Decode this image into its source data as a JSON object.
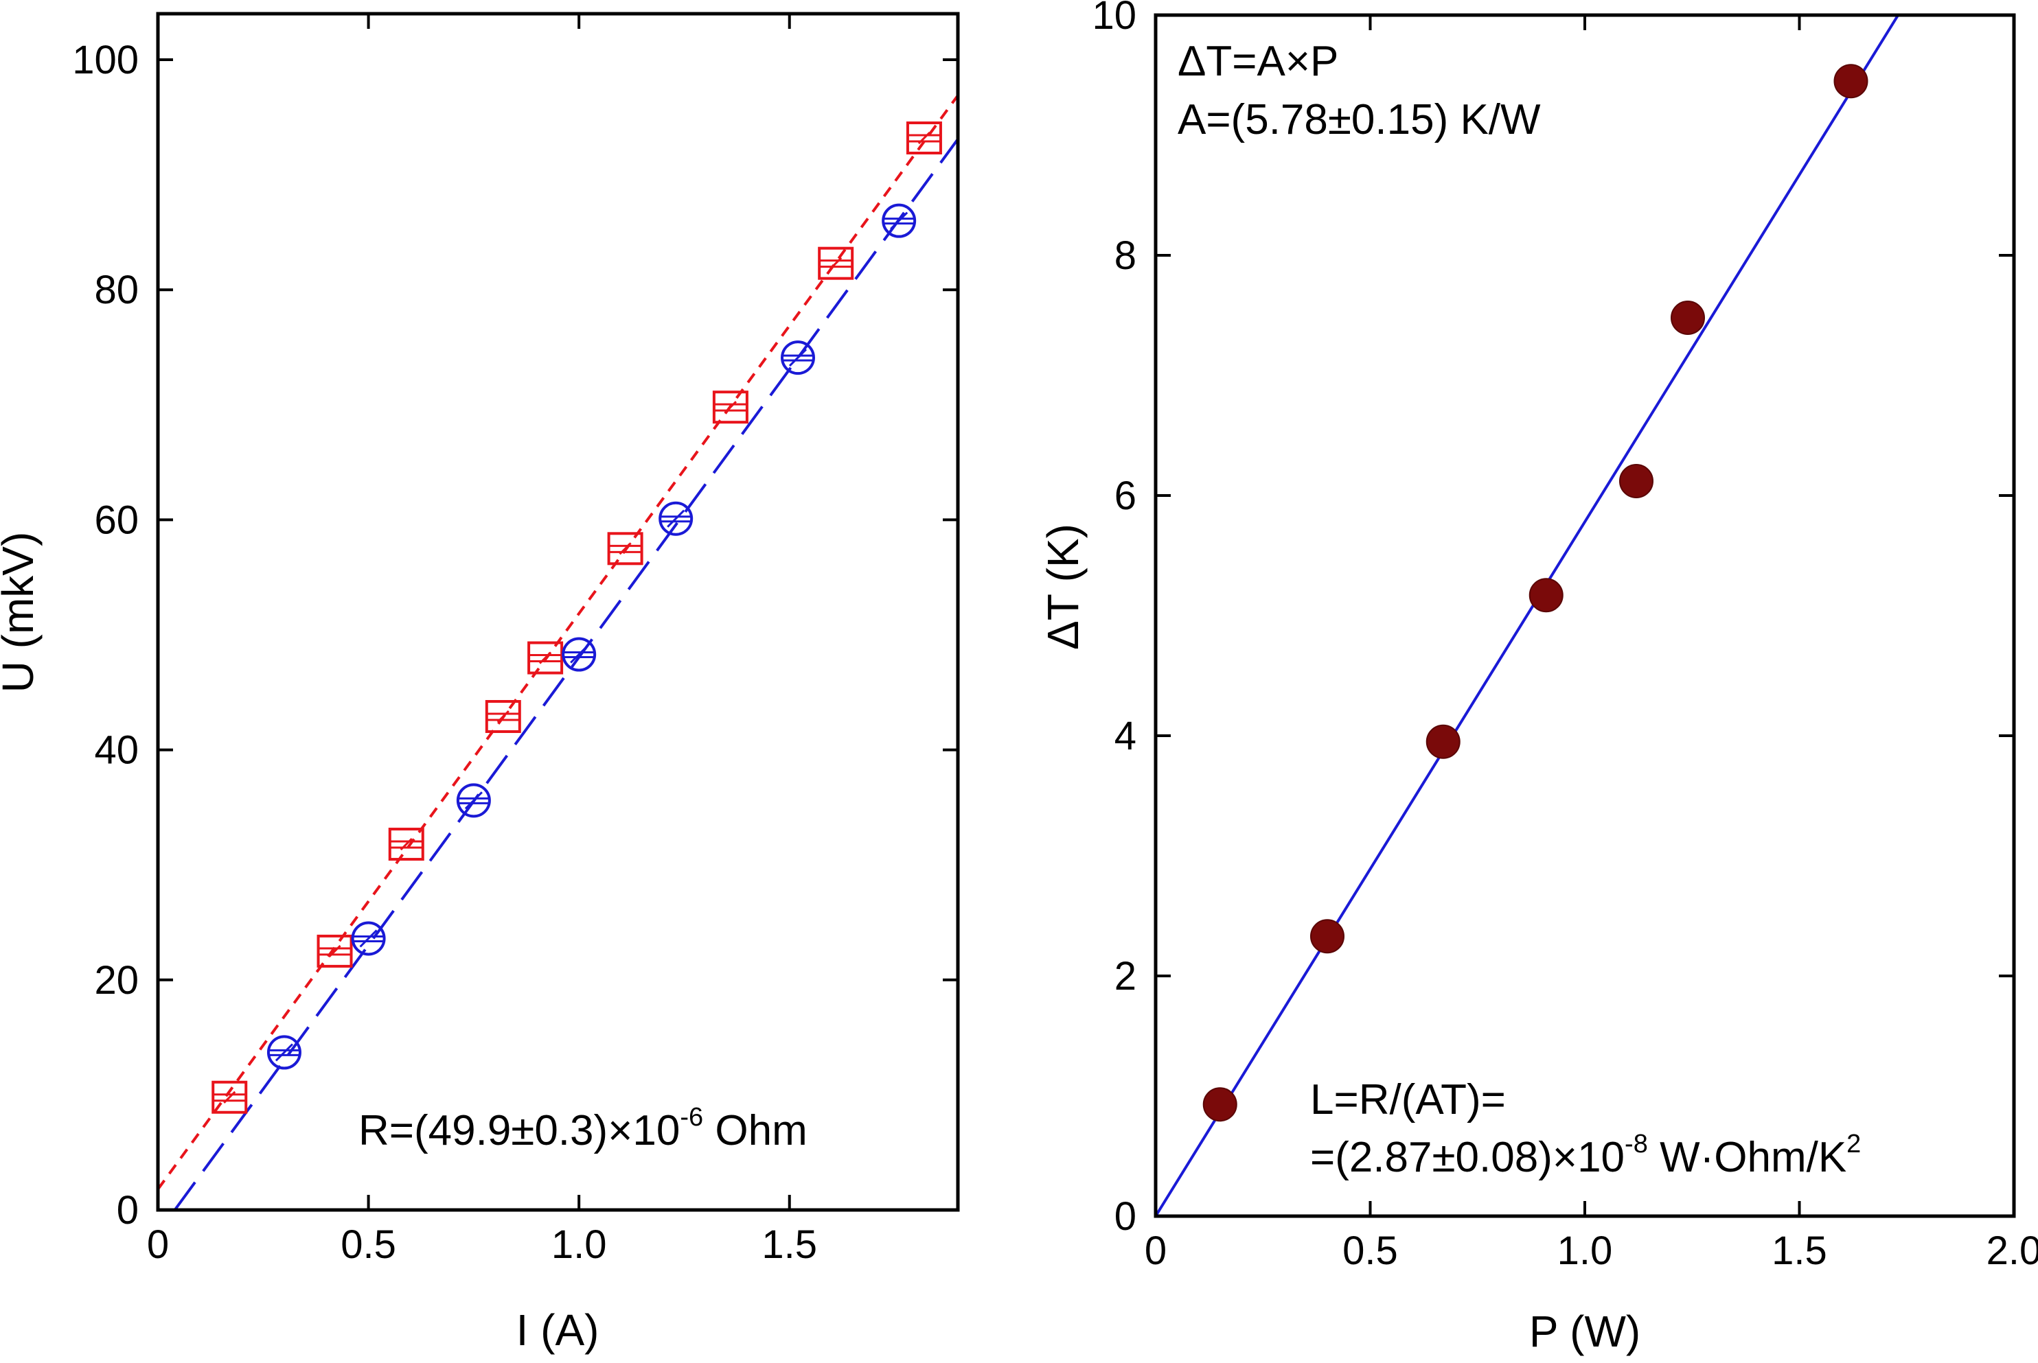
{
  "chart_data": [
    {
      "type": "scatter",
      "xlabel": "I (A)",
      "ylabel": "U (mkV)",
      "xlim": [
        0,
        1.9
      ],
      "ylim": [
        0,
        104
      ],
      "x_ticks": [
        "0",
        "0.5",
        "1.0",
        "1.5"
      ],
      "x_tick_values": [
        0,
        0.5,
        1.0,
        1.5
      ],
      "y_ticks": [
        "0",
        "20",
        "40",
        "60",
        "80",
        "100"
      ],
      "y_tick_values": [
        0,
        20,
        40,
        60,
        80,
        100
      ],
      "grid": false,
      "series": [
        {
          "marker": "square",
          "color": "#e8141b",
          "x": [
            0.17,
            0.42,
            0.59,
            0.82,
            0.92,
            1.11,
            1.36,
            1.61,
            1.82
          ],
          "y": [
            9.8,
            22.5,
            31.8,
            42.9,
            48.0,
            57.5,
            69.8,
            82.3,
            93.2
          ],
          "fit": {
            "style": "dotted",
            "x": [
              0,
              1.9
            ],
            "y": [
              1.8,
              96.9
            ]
          }
        },
        {
          "marker": "circle",
          "color": "#1a1ad6",
          "x": [
            0.3,
            0.5,
            0.75,
            1.0,
            1.23,
            1.52,
            1.76
          ],
          "y": [
            13.7,
            23.6,
            35.6,
            48.3,
            60.1,
            74.1,
            86.0
          ],
          "fit": {
            "style": "dashed",
            "x": [
              0.04,
              1.9
            ],
            "y": [
              0,
              93.1
            ]
          }
        }
      ],
      "annotations": [
        {
          "text": "R=(49.9±0.3)×10",
          "sup": "-6",
          "suffix": " Ohm"
        }
      ]
    },
    {
      "type": "scatter",
      "xlabel": "P (W)",
      "ylabel": "ΔT (K)",
      "xlim": [
        0,
        2.0
      ],
      "ylim": [
        0,
        10
      ],
      "x_ticks": [
        "0",
        "0.5",
        "1.0",
        "1.5",
        "2.0"
      ],
      "x_tick_values": [
        0,
        0.5,
        1.0,
        1.5,
        2.0
      ],
      "y_ticks": [
        "0",
        "2",
        "4",
        "6",
        "8",
        "10"
      ],
      "y_tick_values": [
        0,
        2,
        4,
        6,
        8,
        10
      ],
      "grid": false,
      "series": [
        {
          "marker": "filled-circle",
          "color": "#7a0a0a",
          "x": [
            0.15,
            0.4,
            0.67,
            0.91,
            1.12,
            1.24,
            1.62
          ],
          "y": [
            0.93,
            2.33,
            3.95,
            5.17,
            6.12,
            7.48,
            9.45
          ],
          "fit": {
            "style": "solid",
            "color": "#1a1ad6",
            "x": [
              0,
              1.73
            ],
            "y": [
              0,
              10
            ]
          }
        }
      ],
      "annotations": [
        {
          "text": "ΔT=A×P"
        },
        {
          "text": "A=(5.78±0.15) K/W"
        },
        {
          "text": "L=R/(AT)="
        },
        {
          "text": "=(2.87±0.08)×10",
          "sup": "-8",
          "suffix": " W·Ohm/K",
          "sup2": "2"
        }
      ]
    }
  ]
}
